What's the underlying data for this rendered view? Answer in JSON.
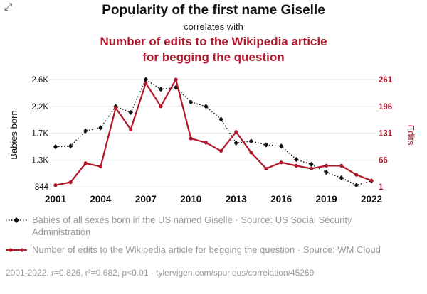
{
  "colors": {
    "accent_red": "#b2182b",
    "black_series": "#111111",
    "grid": "#e7e7e7",
    "muted_text": "#9a9a9a"
  },
  "icons": {
    "expand": "⤢"
  },
  "header": {
    "title": "Popularity of the first name Giselle",
    "subtitle": "correlates with",
    "red_title": "Number of edits to the Wikipedia article for begging the question"
  },
  "chart_data": {
    "type": "line",
    "grid": "horizontal",
    "legend_position": "bottom",
    "x": [
      2001,
      2002,
      2003,
      2004,
      2005,
      2006,
      2007,
      2008,
      2009,
      2010,
      2011,
      2012,
      2013,
      2014,
      2015,
      2016,
      2017,
      2018,
      2019,
      2020,
      2021,
      2022
    ],
    "x_ticks": [
      2001,
      2004,
      2007,
      2010,
      2013,
      2016,
      2019,
      2022
    ],
    "left_axis": {
      "label": "Babies born",
      "ticks": [
        "844",
        "1.3K",
        "1.7K",
        "2.2K",
        "2.6K"
      ],
      "range": [
        844,
        2600
      ],
      "color": "#111111"
    },
    "right_axis": {
      "label": "Edits",
      "ticks": [
        "1",
        "66",
        "131",
        "196",
        "261"
      ],
      "range": [
        1,
        261
      ],
      "color": "#b2182b"
    },
    "series": [
      {
        "name": "Babies of all sexes born in the US named Giselle",
        "axis": "left",
        "color": "#111111",
        "marker": "diamond",
        "dash": "1.5,2.5",
        "width": 1.4,
        "values": [
          1500,
          1510,
          1760,
          1810,
          2160,
          2060,
          2600,
          2440,
          2470,
          2230,
          2160,
          1950,
          1560,
          1590,
          1530,
          1510,
          1290,
          1210,
          1080,
          990,
          870,
          940
        ]
      },
      {
        "name": "Number of edits to the Wikipedia article for begging the question",
        "axis": "right",
        "color": "#b2182b",
        "marker": "circle",
        "dash": "",
        "width": 2.2,
        "values": [
          5,
          12,
          58,
          50,
          192,
          140,
          252,
          196,
          261,
          118,
          108,
          88,
          134,
          84,
          45,
          60,
          52,
          45,
          52,
          52,
          30,
          16
        ]
      }
    ]
  },
  "legend": {
    "items": [
      {
        "label": "Babies of all sexes born in the US named Giselle · Source: US Social Security Administration"
      },
      {
        "label": "Number of edits to the Wikipedia article for begging the question · Source: WM Cloud"
      }
    ]
  },
  "footer": {
    "text": "2001-2022, r=0.826, r²=0.682, p<0.01 · tylervigen.com/spurious/correlation/45269"
  }
}
